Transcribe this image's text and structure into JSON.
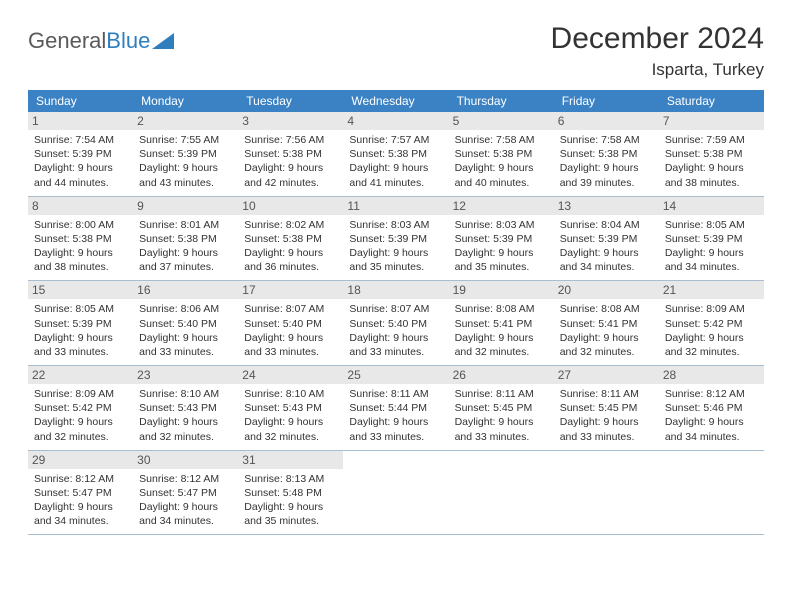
{
  "logo": {
    "text1": "General",
    "text2": "Blue"
  },
  "title": "December 2024",
  "location": "Isparta, Turkey",
  "colors": {
    "headerBar": "#3b82c4",
    "dayNumBg": "#e8e8e8",
    "rowBorder": "#a8bdd0",
    "text": "#333333",
    "logoGray": "#5a5a5a",
    "logoBlue": "#2f7fbf"
  },
  "layout": {
    "columns": 7,
    "rows": 5,
    "cellFontSize": 10.5,
    "weekdayFontSize": 12,
    "titleFontSize": 30,
    "locationFontSize": 17
  },
  "weekdays": [
    "Sunday",
    "Monday",
    "Tuesday",
    "Wednesday",
    "Thursday",
    "Friday",
    "Saturday"
  ],
  "weeks": [
    [
      {
        "n": "1",
        "sr": "7:54 AM",
        "ss": "5:39 PM",
        "dl": "9 hours and 44 minutes."
      },
      {
        "n": "2",
        "sr": "7:55 AM",
        "ss": "5:39 PM",
        "dl": "9 hours and 43 minutes."
      },
      {
        "n": "3",
        "sr": "7:56 AM",
        "ss": "5:38 PM",
        "dl": "9 hours and 42 minutes."
      },
      {
        "n": "4",
        "sr": "7:57 AM",
        "ss": "5:38 PM",
        "dl": "9 hours and 41 minutes."
      },
      {
        "n": "5",
        "sr": "7:58 AM",
        "ss": "5:38 PM",
        "dl": "9 hours and 40 minutes."
      },
      {
        "n": "6",
        "sr": "7:58 AM",
        "ss": "5:38 PM",
        "dl": "9 hours and 39 minutes."
      },
      {
        "n": "7",
        "sr": "7:59 AM",
        "ss": "5:38 PM",
        "dl": "9 hours and 38 minutes."
      }
    ],
    [
      {
        "n": "8",
        "sr": "8:00 AM",
        "ss": "5:38 PM",
        "dl": "9 hours and 38 minutes."
      },
      {
        "n": "9",
        "sr": "8:01 AM",
        "ss": "5:38 PM",
        "dl": "9 hours and 37 minutes."
      },
      {
        "n": "10",
        "sr": "8:02 AM",
        "ss": "5:38 PM",
        "dl": "9 hours and 36 minutes."
      },
      {
        "n": "11",
        "sr": "8:03 AM",
        "ss": "5:39 PM",
        "dl": "9 hours and 35 minutes."
      },
      {
        "n": "12",
        "sr": "8:03 AM",
        "ss": "5:39 PM",
        "dl": "9 hours and 35 minutes."
      },
      {
        "n": "13",
        "sr": "8:04 AM",
        "ss": "5:39 PM",
        "dl": "9 hours and 34 minutes."
      },
      {
        "n": "14",
        "sr": "8:05 AM",
        "ss": "5:39 PM",
        "dl": "9 hours and 34 minutes."
      }
    ],
    [
      {
        "n": "15",
        "sr": "8:05 AM",
        "ss": "5:39 PM",
        "dl": "9 hours and 33 minutes."
      },
      {
        "n": "16",
        "sr": "8:06 AM",
        "ss": "5:40 PM",
        "dl": "9 hours and 33 minutes."
      },
      {
        "n": "17",
        "sr": "8:07 AM",
        "ss": "5:40 PM",
        "dl": "9 hours and 33 minutes."
      },
      {
        "n": "18",
        "sr": "8:07 AM",
        "ss": "5:40 PM",
        "dl": "9 hours and 33 minutes."
      },
      {
        "n": "19",
        "sr": "8:08 AM",
        "ss": "5:41 PM",
        "dl": "9 hours and 32 minutes."
      },
      {
        "n": "20",
        "sr": "8:08 AM",
        "ss": "5:41 PM",
        "dl": "9 hours and 32 minutes."
      },
      {
        "n": "21",
        "sr": "8:09 AM",
        "ss": "5:42 PM",
        "dl": "9 hours and 32 minutes."
      }
    ],
    [
      {
        "n": "22",
        "sr": "8:09 AM",
        "ss": "5:42 PM",
        "dl": "9 hours and 32 minutes."
      },
      {
        "n": "23",
        "sr": "8:10 AM",
        "ss": "5:43 PM",
        "dl": "9 hours and 32 minutes."
      },
      {
        "n": "24",
        "sr": "8:10 AM",
        "ss": "5:43 PM",
        "dl": "9 hours and 32 minutes."
      },
      {
        "n": "25",
        "sr": "8:11 AM",
        "ss": "5:44 PM",
        "dl": "9 hours and 33 minutes."
      },
      {
        "n": "26",
        "sr": "8:11 AM",
        "ss": "5:45 PM",
        "dl": "9 hours and 33 minutes."
      },
      {
        "n": "27",
        "sr": "8:11 AM",
        "ss": "5:45 PM",
        "dl": "9 hours and 33 minutes."
      },
      {
        "n": "28",
        "sr": "8:12 AM",
        "ss": "5:46 PM",
        "dl": "9 hours and 34 minutes."
      }
    ],
    [
      {
        "n": "29",
        "sr": "8:12 AM",
        "ss": "5:47 PM",
        "dl": "9 hours and 34 minutes."
      },
      {
        "n": "30",
        "sr": "8:12 AM",
        "ss": "5:47 PM",
        "dl": "9 hours and 34 minutes."
      },
      {
        "n": "31",
        "sr": "8:13 AM",
        "ss": "5:48 PM",
        "dl": "9 hours and 35 minutes."
      },
      null,
      null,
      null,
      null
    ]
  ],
  "labels": {
    "sunrise": "Sunrise: ",
    "sunset": "Sunset: ",
    "daylight": "Daylight: "
  }
}
